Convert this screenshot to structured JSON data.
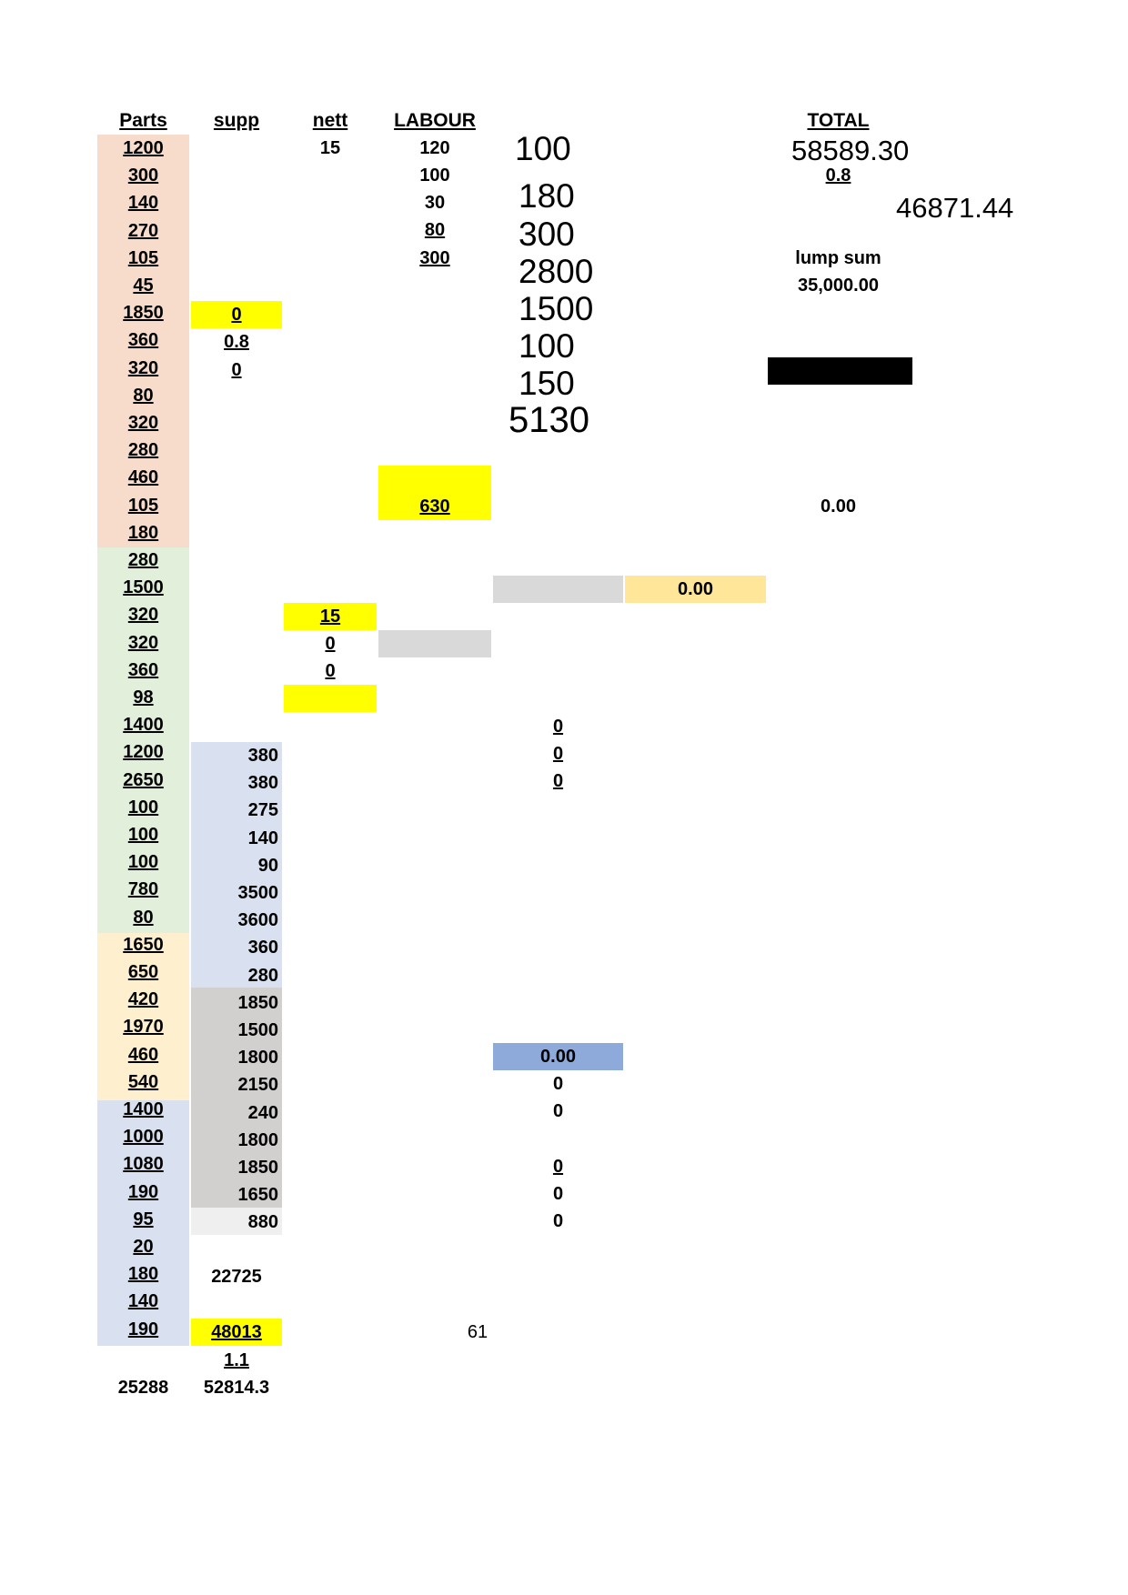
{
  "headers": {
    "parts": "Parts",
    "supp": "supp",
    "nett": "nett",
    "labour": "LABOUR",
    "total": "TOTAL"
  },
  "parts_values": [
    "1200",
    "300",
    "140",
    "270",
    "105",
    "45",
    "1850",
    "360",
    "320",
    "80",
    "320",
    "280",
    "460",
    "105",
    "180",
    "280",
    "1500",
    "320",
    "320",
    "360",
    "98",
    "1400",
    "1200",
    "2650",
    "100",
    "100",
    "100",
    "780",
    "80",
    "1650",
    "650",
    "420",
    "1970",
    "460",
    "540",
    "1400",
    "1000",
    "1080",
    "190",
    "95",
    "20",
    "180",
    "140",
    "190"
  ],
  "parts_total": "25288",
  "supp_col": {
    "top": [
      "0",
      "0.8",
      "0"
    ],
    "values": [
      "380",
      "380",
      "275",
      "140",
      "90",
      "3500",
      "3600",
      "360",
      "280",
      "1850",
      "1500",
      "1800",
      "2150",
      "240",
      "1800",
      "1850",
      "1650",
      "880"
    ],
    "subtotal": "22725",
    "total": "48013",
    "factor": "1.1",
    "grand": "52814.3"
  },
  "nett_col": {
    "first": "15",
    "highlight": "15",
    "zero_a": "0",
    "zero_b": "0"
  },
  "labour_col": {
    "values": [
      "120",
      "100",
      "30",
      "80",
      "300"
    ],
    "total": "630"
  },
  "big_numbers": [
    "100",
    "180",
    "300",
    "2800",
    "1500",
    "100",
    "150",
    "5130"
  ],
  "zeros_col": {
    "underlined": [
      "0",
      "0",
      "0"
    ],
    "blue_value": "0.00",
    "after_blue": [
      "0",
      "0"
    ],
    "lower_underlined": "0",
    "lower": [
      "0",
      "0"
    ]
  },
  "orange_value": "0.00",
  "page_number": "61",
  "total_col": {
    "value": "58589.30",
    "factor": "0.8",
    "net": "46871.44",
    "lump_label": "lump sum",
    "lump_value": "35,000.00",
    "zero": "0.00"
  },
  "colors": {
    "peach": "#f8dccb",
    "green": "#e2efda",
    "cream": "#fef0cf",
    "lavender": "#d9e0f0",
    "gray": "#d2cfcf",
    "light_gray": "#d9d9d9",
    "very_light_gray": "#efefef",
    "yellow": "#ffff00",
    "orange": "#ffe699",
    "blue": "#8eaadb",
    "black": "#000000"
  }
}
